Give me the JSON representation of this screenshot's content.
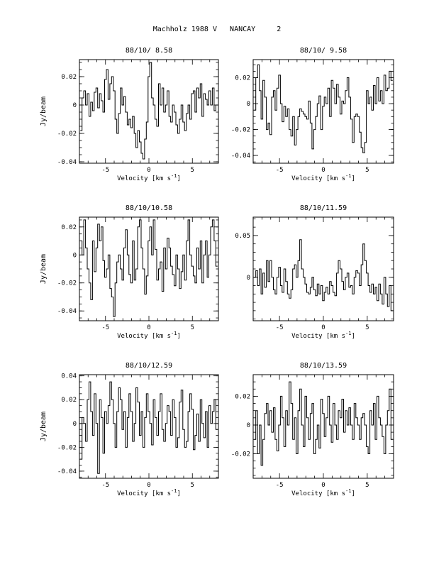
{
  "page_title": "Machholz 1988 V   NANCAY     2",
  "chart_data": [
    {
      "type": "line",
      "title": "88/10/ 8.58",
      "xlabel": "Velocity [km s^-1]",
      "ylabel": "Jy/beam",
      "xlim": [
        -8,
        8
      ],
      "ylim": [
        -0.041,
        0.032
      ],
      "xticks": [
        -5,
        0,
        5
      ],
      "yticks": [
        -0.04,
        -0.02,
        0,
        0.02
      ],
      "ytick_labels": [
        "-0.04",
        "-0.02",
        "0",
        "0.02"
      ],
      "x": [
        -7.8,
        -7.6,
        -7.4,
        -7.2,
        -7.0,
        -6.8,
        -6.6,
        -6.4,
        -6.2,
        -6.0,
        -5.8,
        -5.6,
        -5.4,
        -5.2,
        -5.0,
        -4.8,
        -4.6,
        -4.4,
        -4.2,
        -4.0,
        -3.8,
        -3.6,
        -3.4,
        -3.2,
        -3.0,
        -2.8,
        -2.6,
        -2.4,
        -2.2,
        -2.0,
        -1.8,
        -1.6,
        -1.4,
        -1.2,
        -1.0,
        -0.8,
        -0.6,
        -0.4,
        -0.2,
        0.0,
        0.2,
        0.4,
        0.6,
        0.8,
        1.0,
        1.2,
        1.4,
        1.6,
        1.8,
        2.0,
        2.2,
        2.4,
        2.6,
        2.8,
        3.0,
        3.2,
        3.4,
        3.6,
        3.8,
        4.0,
        4.2,
        4.4,
        4.6,
        4.8,
        5.0,
        5.2,
        5.4,
        5.6,
        5.8,
        6.0,
        6.2,
        6.4,
        6.6,
        6.8,
        7.0,
        7.2,
        7.4,
        7.6,
        7.8
      ],
      "values": [
        -0.018,
        0.005,
        0.01,
        0.0,
        0.008,
        -0.008,
        0.002,
        -0.004,
        0.009,
        0.012,
        -0.002,
        0.008,
        0.003,
        -0.005,
        0.018,
        0.025,
        0.004,
        0.015,
        0.02,
        0.01,
        -0.01,
        -0.02,
        -0.006,
        0.012,
        0.0,
        0.006,
        -0.005,
        -0.014,
        -0.01,
        -0.016,
        -0.008,
        -0.02,
        -0.03,
        -0.018,
        -0.026,
        -0.034,
        -0.038,
        -0.024,
        -0.012,
        0.02,
        0.03,
        0.005,
        0.0,
        -0.01,
        -0.015,
        0.015,
        0.0,
        0.012,
        -0.005,
        0.0,
        0.01,
        -0.008,
        -0.012,
        0.0,
        -0.005,
        -0.014,
        -0.02,
        -0.01,
        0.0,
        -0.012,
        -0.018,
        -0.006,
        0.0,
        -0.01,
        0.008,
        0.01,
        -0.005,
        0.012,
        0.005,
        0.015,
        -0.008,
        0.008,
        0.004,
        0.0,
        0.01,
        0.0,
        0.012,
        -0.004,
        0.0
      ]
    },
    {
      "type": "line",
      "title": "88/10/ 9.58",
      "xlabel": "Velocity [km s^-1]",
      "ylabel": "",
      "xlim": [
        -8,
        8
      ],
      "ylim": [
        -0.046,
        0.034
      ],
      "xticks": [
        -5,
        0,
        5
      ],
      "yticks": [
        -0.04,
        -0.02,
        0,
        0.02
      ],
      "ytick_labels": [
        "-0.04",
        "-0.02",
        "0",
        "0.02"
      ],
      "x": [
        -7.8,
        -7.6,
        -7.4,
        -7.2,
        -7.0,
        -6.8,
        -6.6,
        -6.4,
        -6.2,
        -6.0,
        -5.8,
        -5.6,
        -5.4,
        -5.2,
        -5.0,
        -4.8,
        -4.6,
        -4.4,
        -4.2,
        -4.0,
        -3.8,
        -3.6,
        -3.4,
        -3.2,
        -3.0,
        -2.8,
        -2.6,
        -2.4,
        -2.2,
        -2.0,
        -1.8,
        -1.6,
        -1.4,
        -1.2,
        -1.0,
        -0.8,
        -0.6,
        -0.4,
        -0.2,
        0.0,
        0.2,
        0.4,
        0.6,
        0.8,
        1.0,
        1.2,
        1.4,
        1.6,
        1.8,
        2.0,
        2.2,
        2.4,
        2.6,
        2.8,
        3.0,
        3.2,
        3.4,
        3.6,
        3.8,
        4.0,
        4.2,
        4.4,
        4.6,
        4.8,
        5.0,
        5.2,
        5.4,
        5.6,
        5.8,
        6.0,
        6.2,
        6.4,
        6.6,
        6.8,
        7.0,
        7.2,
        7.4,
        7.6,
        7.8
      ],
      "values": [
        -0.005,
        0.02,
        0.03,
        0.01,
        -0.012,
        0.018,
        0.005,
        -0.02,
        -0.015,
        -0.024,
        0.005,
        0.01,
        -0.005,
        0.012,
        0.022,
        0.0,
        -0.014,
        -0.002,
        -0.01,
        -0.004,
        -0.02,
        -0.025,
        -0.01,
        -0.032,
        -0.02,
        -0.01,
        -0.004,
        -0.006,
        -0.008,
        -0.01,
        -0.012,
        0.002,
        -0.015,
        -0.035,
        -0.02,
        -0.01,
        0.0,
        0.006,
        -0.02,
        -0.002,
        0.005,
        0.0,
        0.012,
        -0.01,
        0.018,
        0.012,
        0.0,
        0.015,
        0.005,
        -0.008,
        0.002,
        0.0,
        0.01,
        0.02,
        0.005,
        -0.012,
        -0.03,
        -0.01,
        -0.008,
        -0.01,
        -0.022,
        -0.034,
        -0.038,
        -0.03,
        0.01,
        0.0,
        0.005,
        -0.005,
        0.014,
        0.0,
        0.02,
        0.002,
        0.01,
        0.0,
        0.022,
        0.01,
        0.012,
        0.025,
        0.018
      ]
    },
    {
      "type": "line",
      "title": "88/10/10.58",
      "xlabel": "Velocity [km s^-1]",
      "ylabel": "Jy/beam",
      "xlim": [
        -8,
        8
      ],
      "ylim": [
        -0.047,
        0.027
      ],
      "xticks": [
        -5,
        0,
        5
      ],
      "yticks": [
        -0.04,
        -0.02,
        0,
        0.02
      ],
      "ytick_labels": [
        "-0.04",
        "-0.02",
        "0",
        "0.02"
      ],
      "x": [
        -7.8,
        -7.6,
        -7.4,
        -7.2,
        -7.0,
        -6.8,
        -6.6,
        -6.4,
        -6.2,
        -6.0,
        -5.8,
        -5.6,
        -5.4,
        -5.2,
        -5.0,
        -4.8,
        -4.6,
        -4.4,
        -4.2,
        -4.0,
        -3.8,
        -3.6,
        -3.4,
        -3.2,
        -3.0,
        -2.8,
        -2.6,
        -2.4,
        -2.2,
        -2.0,
        -1.8,
        -1.6,
        -1.4,
        -1.2,
        -1.0,
        -0.8,
        -0.6,
        -0.4,
        -0.2,
        0.0,
        0.2,
        0.4,
        0.6,
        0.8,
        1.0,
        1.2,
        1.4,
        1.6,
        1.8,
        2.0,
        2.2,
        2.4,
        2.6,
        2.8,
        3.0,
        3.2,
        3.4,
        3.6,
        3.8,
        4.0,
        4.2,
        4.4,
        4.6,
        4.8,
        5.0,
        5.2,
        5.4,
        5.6,
        5.8,
        6.0,
        6.2,
        6.4,
        6.6,
        6.8,
        7.0,
        7.2,
        7.4,
        7.6,
        7.8
      ],
      "values": [
        0.01,
        0.0,
        0.025,
        0.005,
        -0.01,
        -0.02,
        -0.032,
        0.01,
        -0.012,
        0.005,
        0.022,
        0.01,
        0.02,
        -0.004,
        -0.016,
        -0.01,
        0.0,
        -0.024,
        -0.03,
        -0.044,
        -0.02,
        -0.005,
        0.0,
        -0.01,
        -0.018,
        0.005,
        0.018,
        0.0,
        -0.014,
        -0.02,
        0.01,
        -0.018,
        -0.01,
        0.02,
        0.025,
        0.005,
        -0.01,
        -0.028,
        -0.015,
        0.01,
        0.02,
        0.0,
        0.025,
        0.004,
        -0.018,
        -0.01,
        -0.005,
        -0.026,
        0.005,
        -0.01,
        0.012,
        0.005,
        -0.008,
        -0.014,
        -0.022,
        0.0,
        -0.01,
        -0.024,
        -0.012,
        0.0,
        -0.018,
        0.01,
        0.025,
        0.0,
        -0.008,
        -0.015,
        -0.02,
        0.005,
        -0.01,
        0.01,
        -0.02,
        0.0,
        0.01,
        -0.016,
        0.0,
        0.02,
        0.025,
        0.01,
        -0.008
      ]
    },
    {
      "type": "line",
      "title": "88/10/11.59",
      "xlabel": "Velocity [km s^-1]",
      "ylabel": "",
      "xlim": [
        -8,
        8
      ],
      "ylim": [
        -0.052,
        0.072
      ],
      "xticks": [
        -5,
        0,
        5
      ],
      "yticks": [
        0,
        0.05
      ],
      "ytick_labels": [
        "0",
        "0.05"
      ],
      "x": [
        -7.8,
        -7.6,
        -7.4,
        -7.2,
        -7.0,
        -6.8,
        -6.6,
        -6.4,
        -6.2,
        -6.0,
        -5.8,
        -5.6,
        -5.4,
        -5.2,
        -5.0,
        -4.8,
        -4.6,
        -4.4,
        -4.2,
        -4.0,
        -3.8,
        -3.6,
        -3.4,
        -3.2,
        -3.0,
        -2.8,
        -2.6,
        -2.4,
        -2.2,
        -2.0,
        -1.8,
        -1.6,
        -1.4,
        -1.2,
        -1.0,
        -0.8,
        -0.6,
        -0.4,
        -0.2,
        0.0,
        0.2,
        0.4,
        0.6,
        0.8,
        1.0,
        1.2,
        1.4,
        1.6,
        1.8,
        2.0,
        2.2,
        2.4,
        2.6,
        2.8,
        3.0,
        3.2,
        3.4,
        3.6,
        3.8,
        4.0,
        4.2,
        4.4,
        4.6,
        4.8,
        5.0,
        5.2,
        5.4,
        5.6,
        5.8,
        6.0,
        6.2,
        6.4,
        6.6,
        6.8,
        7.0,
        7.2,
        7.4,
        7.6,
        7.8
      ],
      "values": [
        0.0,
        0.008,
        -0.01,
        0.01,
        -0.02,
        0.005,
        -0.012,
        0.02,
        -0.005,
        0.02,
        0.0,
        -0.015,
        -0.02,
        0.0,
        0.012,
        -0.01,
        -0.018,
        0.01,
        -0.005,
        -0.02,
        -0.025,
        -0.015,
        0.01,
        0.015,
        0.0,
        0.02,
        0.045,
        0.01,
        0.0,
        -0.008,
        -0.018,
        -0.02,
        -0.012,
        0.0,
        -0.015,
        -0.022,
        -0.008,
        -0.02,
        -0.01,
        -0.028,
        -0.018,
        -0.012,
        -0.02,
        -0.005,
        -0.01,
        -0.018,
        -0.022,
        0.005,
        0.02,
        0.01,
        -0.005,
        -0.015,
        0.0,
        0.005,
        -0.012,
        -0.01,
        -0.02,
        0.0,
        0.008,
        0.005,
        -0.01,
        0.015,
        0.04,
        0.02,
        0.005,
        -0.01,
        -0.018,
        -0.008,
        -0.02,
        -0.012,
        -0.028,
        -0.008,
        -0.02,
        -0.032,
        0.0,
        -0.02,
        -0.035,
        -0.01,
        -0.04
      ]
    },
    {
      "type": "line",
      "title": "88/10/12.59",
      "xlabel": "Velocity [km s^-1]",
      "ylabel": "Jy/beam",
      "xlim": [
        -8,
        8
      ],
      "ylim": [
        -0.046,
        0.041
      ],
      "xticks": [
        -5,
        0,
        5
      ],
      "yticks": [
        -0.04,
        -0.02,
        0,
        0.02,
        0.04
      ],
      "ytick_labels": [
        "-0.04",
        "-0.02",
        "0",
        "0.02",
        "0.04"
      ],
      "x": [
        -7.8,
        -7.6,
        -7.4,
        -7.2,
        -7.0,
        -6.8,
        -6.6,
        -6.4,
        -6.2,
        -6.0,
        -5.8,
        -5.6,
        -5.4,
        -5.2,
        -5.0,
        -4.8,
        -4.6,
        -4.4,
        -4.2,
        -4.0,
        -3.8,
        -3.6,
        -3.4,
        -3.2,
        -3.0,
        -2.8,
        -2.6,
        -2.4,
        -2.2,
        -2.0,
        -1.8,
        -1.6,
        -1.4,
        -1.2,
        -1.0,
        -0.8,
        -0.6,
        -0.4,
        -0.2,
        0.0,
        0.2,
        0.4,
        0.6,
        0.8,
        1.0,
        1.2,
        1.4,
        1.6,
        1.8,
        2.0,
        2.2,
        2.4,
        2.6,
        2.8,
        3.0,
        3.2,
        3.4,
        3.6,
        3.8,
        4.0,
        4.2,
        4.4,
        4.6,
        4.8,
        5.0,
        5.2,
        5.4,
        5.6,
        5.8,
        6.0,
        6.2,
        6.4,
        6.6,
        6.8,
        7.0,
        7.2,
        7.4,
        7.6,
        7.8
      ],
      "values": [
        -0.03,
        0.005,
        0.0,
        -0.015,
        0.02,
        0.035,
        0.01,
        -0.01,
        0.025,
        0.0,
        -0.042,
        0.02,
        0.005,
        -0.025,
        0.01,
        0.0,
        0.015,
        0.035,
        0.02,
        0.0,
        -0.02,
        0.01,
        0.03,
        0.02,
        -0.005,
        0.01,
        -0.02,
        0.005,
        0.025,
        0.01,
        -0.015,
        0.0,
        0.03,
        0.018,
        -0.01,
        0.01,
        -0.02,
        0.005,
        0.025,
        0.01,
        0.0,
        -0.018,
        0.02,
        0.005,
        -0.01,
        0.01,
        0.025,
        -0.005,
        -0.015,
        0.0,
        0.015,
        0.01,
        -0.01,
        0.02,
        0.005,
        -0.02,
        -0.012,
        0.018,
        0.028,
        -0.005,
        -0.02,
        -0.015,
        0.01,
        0.025,
        0.012,
        -0.022,
        -0.01,
        0.008,
        -0.015,
        0.02,
        0.0,
        -0.012,
        0.01,
        -0.02,
        0.015,
        0.0,
        0.01,
        0.02,
        -0.005
      ]
    },
    {
      "type": "line",
      "title": "88/10/13.59",
      "xlabel": "Velocity [km s^-1]",
      "ylabel": "",
      "xlim": [
        -8,
        8
      ],
      "ylim": [
        -0.037,
        0.035
      ],
      "xticks": [
        -5,
        0,
        5
      ],
      "yticks": [
        -0.02,
        0,
        0.02
      ],
      "ytick_labels": [
        "-0.02",
        "0",
        "0.02"
      ],
      "x": [
        -7.8,
        -7.6,
        -7.4,
        -7.2,
        -7.0,
        -6.8,
        -6.6,
        -6.4,
        -6.2,
        -6.0,
        -5.8,
        -5.6,
        -5.4,
        -5.2,
        -5.0,
        -4.8,
        -4.6,
        -4.4,
        -4.2,
        -4.0,
        -3.8,
        -3.6,
        -3.4,
        -3.2,
        -3.0,
        -2.8,
        -2.6,
        -2.4,
        -2.2,
        -2.0,
        -1.8,
        -1.6,
        -1.4,
        -1.2,
        -1.0,
        -0.8,
        -0.6,
        -0.4,
        -0.2,
        0.0,
        0.2,
        0.4,
        0.6,
        0.8,
        1.0,
        1.2,
        1.4,
        1.6,
        1.8,
        2.0,
        2.2,
        2.4,
        2.6,
        2.8,
        3.0,
        3.2,
        3.4,
        3.6,
        3.8,
        4.0,
        4.2,
        4.4,
        4.6,
        4.8,
        5.0,
        5.2,
        5.4,
        5.6,
        5.8,
        6.0,
        6.2,
        6.4,
        6.6,
        6.8,
        7.0,
        7.2,
        7.4,
        7.6,
        7.8
      ],
      "values": [
        -0.01,
        0.01,
        -0.02,
        0.0,
        -0.028,
        -0.01,
        0.008,
        0.015,
        0.0,
        0.01,
        -0.005,
        0.012,
        -0.01,
        -0.018,
        0.0,
        0.02,
        0.005,
        -0.015,
        0.01,
        0.0,
        0.03,
        0.015,
        -0.01,
        0.005,
        -0.02,
        0.01,
        0.025,
        0.0,
        -0.015,
        0.02,
        0.005,
        -0.01,
        0.008,
        0.015,
        -0.02,
        -0.01,
        0.0,
        -0.016,
        0.018,
        0.008,
        -0.008,
        0.005,
        0.02,
        0.0,
        -0.012,
        0.015,
        0.0,
        -0.01,
        0.01,
        0.005,
        0.018,
        -0.005,
        0.01,
        0.0,
        0.012,
        0.0,
        -0.01,
        0.015,
        0.005,
        0.0,
        -0.01,
        0.005,
        0.008,
        0.0,
        -0.015,
        -0.02,
        0.01,
        0.0,
        0.015,
        -0.01,
        0.02,
        0.005,
        0.0,
        -0.008,
        -0.02,
        0.0,
        0.01,
        0.025,
        -0.01
      ]
    }
  ]
}
